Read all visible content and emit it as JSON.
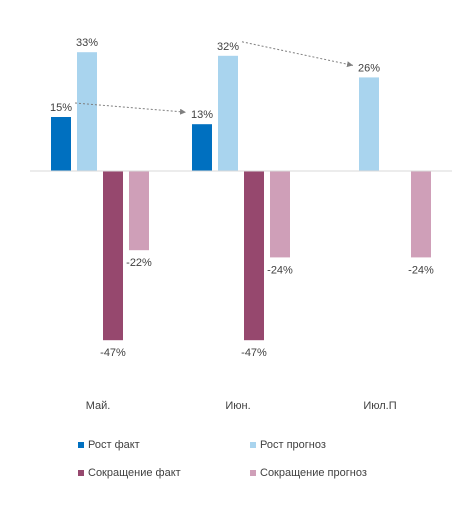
{
  "chart_data": {
    "type": "bar",
    "categories": [
      "Май.",
      "Июн.",
      "Июл.П"
    ],
    "series": [
      {
        "name": "Рост факт",
        "color": "#0070c0",
        "values": [
          15,
          13,
          null
        ],
        "labels": [
          "15%",
          "13%",
          ""
        ]
      },
      {
        "name": "Рост прогноз",
        "color": "#a9d4ee",
        "values": [
          33,
          32,
          26
        ],
        "labels": [
          "33%",
          "32%",
          "26%"
        ]
      },
      {
        "name": "Сокращение факт",
        "color": "#96486e",
        "values": [
          -47,
          -47,
          null
        ],
        "labels": [
          "-47%",
          "-47%",
          ""
        ]
      },
      {
        "name": "Сокращение прогноз",
        "color": "#cf9fb8",
        "values": [
          -22,
          -24,
          -24
        ],
        "labels": [
          "-22%",
          "-24%",
          "-24%"
        ]
      }
    ],
    "ylim": [
      -60,
      40
    ],
    "grid": false,
    "legend_position": "bottom",
    "annotations": [
      {
        "type": "dotted-arrow",
        "from": {
          "category": "Май.",
          "series": "Рост факт"
        },
        "to": {
          "category": "Июн.",
          "series": "Рост факт"
        }
      },
      {
        "type": "dotted-arrow",
        "from": {
          "category": "Июн.",
          "series": "Рост прогноз"
        },
        "to": {
          "category": "Июл.П",
          "series": "Рост прогноз"
        }
      }
    ]
  }
}
